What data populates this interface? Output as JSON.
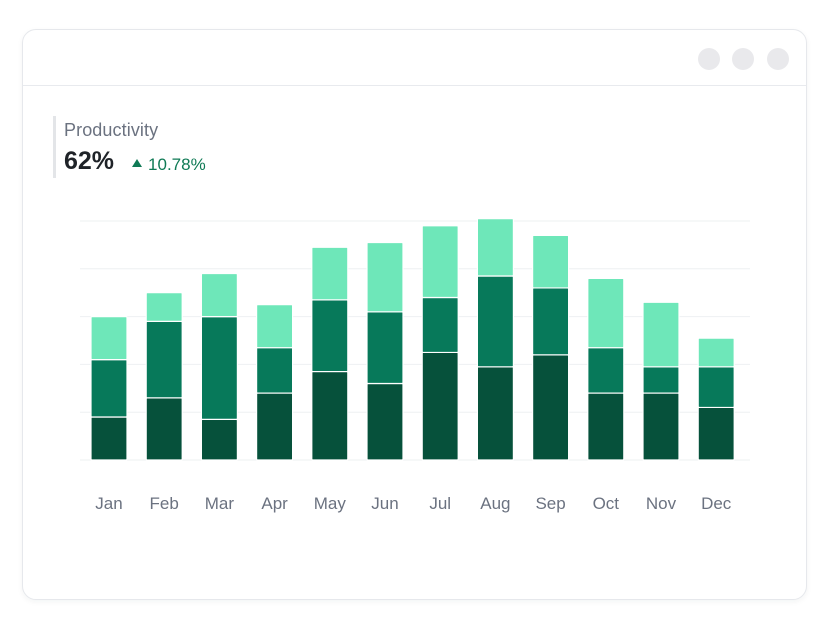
{
  "window": {
    "controls": [
      "dot",
      "dot",
      "dot"
    ]
  },
  "kpi": {
    "label": "Productivity",
    "value": "62%",
    "change": "10.78%",
    "change_direction": "up"
  },
  "colors": {
    "bottom": "#06513b",
    "middle": "#07795a",
    "top": "#6ee7b9",
    "positive": "#0f7a55",
    "grid": "#eef0f2"
  },
  "chart_data": {
    "type": "bar",
    "stacked": true,
    "categories": [
      "Jan",
      "Feb",
      "Mar",
      "Apr",
      "May",
      "Jun",
      "Jul",
      "Aug",
      "Sep",
      "Oct",
      "Nov",
      "Dec"
    ],
    "series": [
      {
        "name": "bottom",
        "values": [
          18,
          26,
          17,
          28,
          37,
          32,
          45,
          39,
          44,
          28,
          28,
          22
        ]
      },
      {
        "name": "middle",
        "values": [
          24,
          32,
          43,
          19,
          30,
          30,
          23,
          38,
          28,
          19,
          11,
          17
        ]
      },
      {
        "name": "top",
        "values": [
          18,
          12,
          18,
          18,
          22,
          29,
          30,
          24,
          22,
          29,
          27,
          12
        ]
      }
    ],
    "ylim": [
      0,
      100
    ],
    "gridlines": [
      0,
      20,
      40,
      60,
      80,
      100
    ],
    "grid": true,
    "title": "",
    "xlabel": "",
    "ylabel": ""
  }
}
